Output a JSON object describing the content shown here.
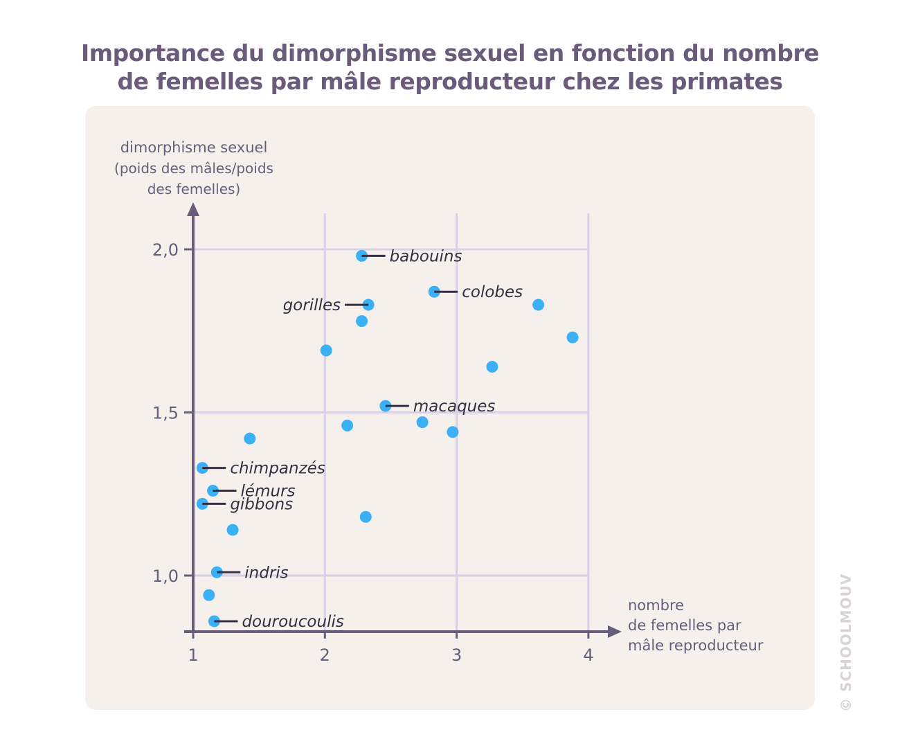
{
  "chart_data": {
    "type": "scatter",
    "title": "Importance du dimorphisme sexuel en fonction du nombre de femelles par mâle reproducteur chez les primates",
    "title_lines": [
      "Importance du dimorphisme sexuel en fonction du nombre",
      "de femelles par mâle reproducteur chez les primates"
    ],
    "ylabel_lines": [
      "dimorphisme sexuel",
      "(poids des mâles/poids",
      "des femelles)"
    ],
    "xlabel_lines": [
      "nombre",
      "de femelles par",
      "mâle reproducteur"
    ],
    "xlim": [
      1,
      4.2
    ],
    "ylim": [
      0.83,
      2.15
    ],
    "xticks": [
      {
        "v": 1,
        "label": "1"
      },
      {
        "v": 2,
        "label": "2"
      },
      {
        "v": 3,
        "label": "3"
      },
      {
        "v": 4,
        "label": "4"
      }
    ],
    "yticks": [
      {
        "v": 1.0,
        "label": "1,0"
      },
      {
        "v": 1.5,
        "label": "1,5"
      },
      {
        "v": 2.0,
        "label": "2,0"
      }
    ],
    "grid": true,
    "colors": {
      "point": "#3bb0f5",
      "axis": "#6b5b7b",
      "grid": "#d8d0e4",
      "label": "#3a2d42"
    },
    "points": [
      {
        "x": 2.28,
        "y": 1.98,
        "label": "babouins"
      },
      {
        "x": 2.83,
        "y": 1.87,
        "label": "colobes"
      },
      {
        "x": 2.33,
        "y": 1.83,
        "label": "gorilles"
      },
      {
        "x": 3.62,
        "y": 1.83
      },
      {
        "x": 2.28,
        "y": 1.78
      },
      {
        "x": 3.88,
        "y": 1.73
      },
      {
        "x": 2.01,
        "y": 1.69
      },
      {
        "x": 3.27,
        "y": 1.64
      },
      {
        "x": 2.46,
        "y": 1.52,
        "label": "macaques"
      },
      {
        "x": 2.17,
        "y": 1.46
      },
      {
        "x": 2.74,
        "y": 1.47
      },
      {
        "x": 2.97,
        "y": 1.44
      },
      {
        "x": 1.43,
        "y": 1.42
      },
      {
        "x": 1.07,
        "y": 1.33,
        "label": "chimpanzés"
      },
      {
        "x": 1.15,
        "y": 1.26,
        "label": "lémurs"
      },
      {
        "x": 1.07,
        "y": 1.22,
        "label": "gibbons"
      },
      {
        "x": 2.31,
        "y": 1.18
      },
      {
        "x": 1.3,
        "y": 1.14
      },
      {
        "x": 1.18,
        "y": 1.01,
        "label": "indris"
      },
      {
        "x": 1.12,
        "y": 0.94
      },
      {
        "x": 1.16,
        "y": 0.86,
        "label": "douroucoulis"
      }
    ]
  },
  "watermark": "SCHOOLMOUV"
}
